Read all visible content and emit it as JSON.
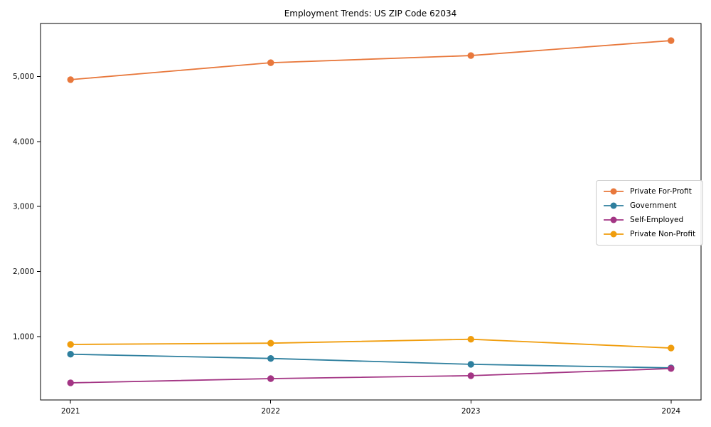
{
  "chart_data": {
    "type": "line",
    "title": "Employment Trends: US ZIP Code 62034",
    "x": [
      2021,
      2022,
      2023,
      2024
    ],
    "x_tick_labels": [
      "2021",
      "2022",
      "2023",
      "2024"
    ],
    "y_ticks": [
      1000,
      2000,
      3000,
      4000,
      5000
    ],
    "y_tick_labels": [
      "1,000",
      "2,000",
      "3,000",
      "4,000",
      "5,000"
    ],
    "series": [
      {
        "name": "Private For-Profit",
        "color": "#e8783c",
        "values": [
          4950,
          5210,
          5320,
          5550
        ]
      },
      {
        "name": "Government",
        "color": "#2e7f9e",
        "values": [
          730,
          665,
          575,
          520
        ]
      },
      {
        "name": "Self-Employed",
        "color": "#a33584",
        "values": [
          290,
          355,
          400,
          510
        ]
      },
      {
        "name": "Private Non-Profit",
        "color": "#f09d0d",
        "values": [
          880,
          900,
          960,
          825
        ]
      }
    ],
    "legend_position": "middle-right",
    "grid": false,
    "axes_box": true,
    "background_color": "#ffffff",
    "spine_color": "#000000",
    "axis_margin_fraction": 0.05
  }
}
